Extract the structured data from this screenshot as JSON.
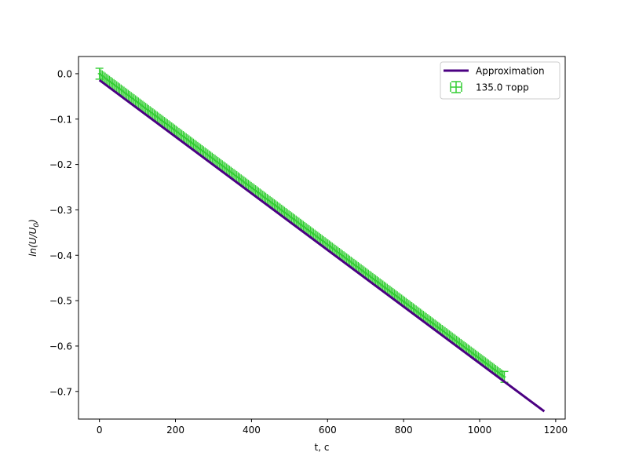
{
  "chart_data": {
    "type": "scatter",
    "title": "",
    "xlabel": "t, c",
    "ylabel_parts": {
      "pre": "ln(U/U",
      "sub": "0",
      "post": ")"
    },
    "xlim": [
      -55,
      1225
    ],
    "ylim": [
      -0.7609,
      0.0379
    ],
    "xticks": [
      0,
      200,
      400,
      600,
      800,
      1000,
      1200
    ],
    "xtick_labels": [
      "0",
      "200",
      "400",
      "600",
      "800",
      "1000",
      "1200"
    ],
    "yticks": [
      0.0,
      -0.1,
      -0.2,
      -0.3,
      -0.4,
      -0.5,
      -0.6,
      -0.7
    ],
    "ytick_labels": [
      "0.0",
      "−0.1",
      "−0.2",
      "−0.3",
      "−0.4",
      "−0.5",
      "−0.6",
      "−0.7"
    ],
    "grid": false,
    "legend_position": "upper right",
    "series": [
      {
        "name": "Approximation",
        "kind": "line",
        "color": "#4b0082",
        "x": [
          0,
          1170
        ],
        "y": [
          -0.014,
          -0.744
        ]
      },
      {
        "name": "135.0 торр",
        "kind": "errorbar",
        "color": "#32cd32",
        "x_range": [
          0,
          1065
        ],
        "y_at_start": 0.0,
        "y_at_end": -0.668,
        "yerr": 0.012,
        "xerr": 4
      }
    ],
    "colors": {
      "approximation": "#4b0082",
      "data": "#32cd32"
    }
  }
}
